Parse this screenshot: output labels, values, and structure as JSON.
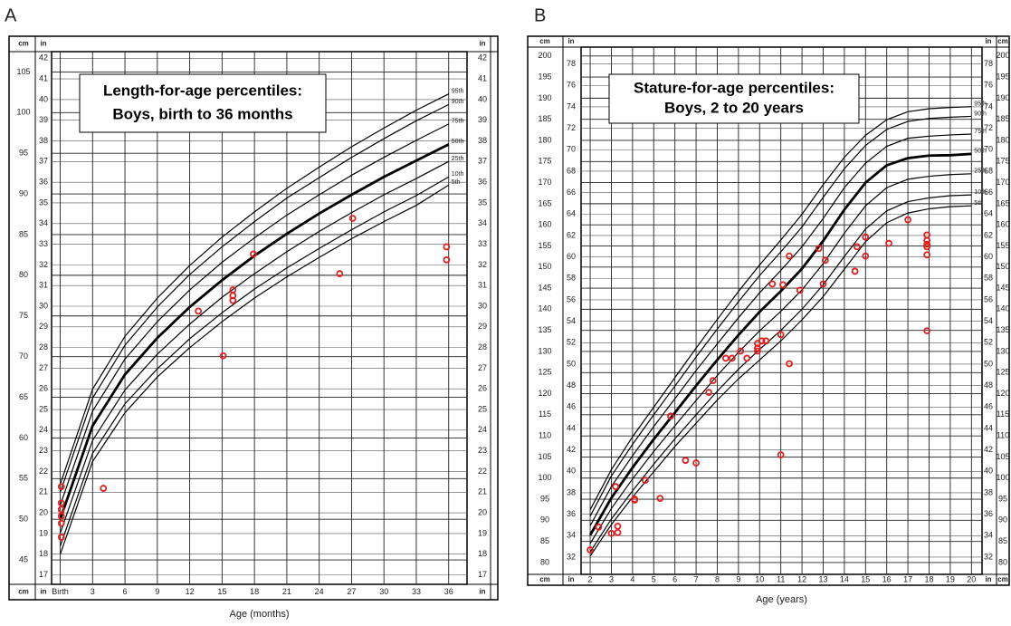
{
  "chart_data": [
    {
      "type": "line",
      "panel_label": "A",
      "title": "Length-for-age percentiles:",
      "subtitle": "Boys, birth to 36 months",
      "xlabel": "Age (months)",
      "ylabel": "cm",
      "y2label": "in",
      "xlim": [
        -0.8,
        37.7
      ],
      "ylim": [
        42,
        107.5
      ],
      "y2lim": [
        16.54,
        42.32
      ],
      "xticks": [
        {
          "value": 0,
          "label": "Birth"
        },
        3,
        6,
        9,
        12,
        15,
        18,
        21,
        24,
        27,
        30,
        33,
        36
      ],
      "yticks": [
        45,
        50,
        55,
        60,
        65,
        70,
        75,
        80,
        85,
        90,
        95,
        100,
        105
      ],
      "y2ticks": [
        17,
        18,
        19,
        20,
        21,
        22,
        23,
        24,
        25,
        26,
        27,
        28,
        29,
        30,
        31,
        32,
        33,
        34,
        35,
        36,
        37,
        38,
        39,
        40,
        41,
        42
      ],
      "grid": true,
      "x": [
        0,
        3,
        6,
        9,
        12,
        15,
        18,
        21,
        24,
        27,
        30,
        33,
        36
      ],
      "series": [
        {
          "name": "95th",
          "color": "#000000",
          "line_width": 1.2,
          "values": [
            54.3,
            66.0,
            72.5,
            77.2,
            81.2,
            84.7,
            87.8,
            90.7,
            93.3,
            95.8,
            98.1,
            100.3,
            102.3
          ]
        },
        {
          "name": "90th",
          "color": "#000000",
          "line_width": 1.2,
          "values": [
            53.3,
            64.9,
            71.4,
            76.1,
            80.1,
            83.5,
            86.6,
            89.5,
            92.0,
            94.5,
            96.8,
            99.0,
            101.0
          ]
        },
        {
          "name": "75th",
          "color": "#000000",
          "line_width": 1.2,
          "values": [
            51.7,
            63.3,
            69.7,
            74.3,
            78.2,
            81.6,
            84.6,
            87.4,
            89.9,
            92.3,
            94.5,
            96.6,
            98.6
          ]
        },
        {
          "name": "50th",
          "color": "#000000",
          "line_width": 2.8,
          "values": [
            50,
            61.5,
            67.8,
            72.3,
            76.1,
            79.4,
            82.4,
            85.1,
            87.6,
            89.9,
            92.1,
            94.1,
            96.1
          ]
        },
        {
          "name": "25th",
          "color": "#000000",
          "line_width": 1.2,
          "values": [
            48.3,
            59.7,
            65.9,
            70.3,
            74.0,
            77.3,
            80.2,
            82.9,
            85.4,
            87.7,
            89.9,
            91.9,
            94.0
          ]
        },
        {
          "name": "10th",
          "color": "#000000",
          "line_width": 1.2,
          "values": [
            46.7,
            58.1,
            64.2,
            68.5,
            72.2,
            75.4,
            78.3,
            80.9,
            83.3,
            85.6,
            87.8,
            89.8,
            92.1
          ]
        },
        {
          "name": "5th",
          "color": "#000000",
          "line_width": 1.2,
          "values": [
            45.7,
            57.1,
            63.1,
            67.5,
            71.1,
            74.3,
            77.2,
            79.8,
            82.2,
            84.5,
            86.6,
            88.6,
            91.1
          ]
        }
      ],
      "points": {
        "color": "#e32020",
        "x": [
          0.1,
          0.1,
          0.1,
          0.1,
          0.1,
          0.1,
          4,
          12.8,
          15.1,
          16,
          16,
          16,
          17.9,
          25.9,
          27.1,
          35.8,
          35.8
        ],
        "y": [
          54.0,
          52.0,
          51.2,
          50.4,
          49.5,
          47.8,
          53.8,
          75.6,
          70.1,
          78.2,
          77.5,
          76.9,
          82.6,
          80.2,
          87.0,
          83.5,
          81.9
        ]
      }
    },
    {
      "type": "line",
      "panel_label": "B",
      "title": "Stature-for-age percentiles:",
      "subtitle": "Boys, 2 to 20 years",
      "xlabel": "Age (years)",
      "ylabel": "cm",
      "y2label": "in",
      "xlim": [
        1.57,
        20.5
      ],
      "ylim": [
        77.2,
        202.1
      ],
      "y2lim": [
        30.39,
        79.57
      ],
      "xticks": [
        2,
        3,
        4,
        5,
        6,
        7,
        8,
        9,
        10,
        11,
        12,
        13,
        14,
        15,
        16,
        17,
        18,
        19,
        20
      ],
      "yticks": [
        80,
        85,
        90,
        95,
        100,
        105,
        110,
        115,
        120,
        125,
        130,
        135,
        140,
        145,
        150,
        155,
        160,
        165,
        170,
        175,
        180,
        185,
        190,
        195,
        200
      ],
      "y2ticks": [
        32,
        34,
        36,
        38,
        40,
        42,
        44,
        46,
        48,
        50,
        52,
        54,
        56,
        58,
        60,
        62,
        64,
        66,
        68,
        70,
        72,
        74,
        76,
        78
      ],
      "grid": true,
      "x": [
        2,
        3,
        4,
        5,
        6,
        7,
        8,
        9,
        10,
        11,
        12,
        13,
        14,
        15,
        16,
        17,
        18,
        19,
        20
      ],
      "series": [
        {
          "name": "95th",
          "color": "#000000",
          "line_width": 1.2,
          "values": [
            92.5,
            102.0,
            109.8,
            116.8,
            123.8,
            130.8,
            137.6,
            144.2,
            150.5,
            156.4,
            162.5,
            169.5,
            176.0,
            181.2,
            184.9,
            186.8,
            187.5,
            187.8,
            188.0
          ]
        },
        {
          "name": "90th",
          "color": "#000000",
          "line_width": 1.2,
          "values": [
            91.0,
            100.5,
            108.0,
            115.0,
            121.8,
            128.7,
            135.3,
            141.8,
            148.0,
            153.6,
            159.5,
            166.5,
            173.3,
            178.8,
            182.6,
            184.5,
            185.2,
            185.5,
            185.7
          ]
        },
        {
          "name": "75th",
          "color": "#000000",
          "line_width": 1.2,
          "values": [
            88.7,
            98.0,
            105.3,
            112.2,
            118.8,
            125.5,
            131.8,
            138.0,
            143.9,
            149.2,
            154.8,
            161.5,
            168.8,
            174.6,
            178.6,
            180.5,
            181.0,
            181.3,
            181.5
          ]
        },
        {
          "name": "50th",
          "color": "#000000",
          "line_width": 2.8,
          "values": [
            86.5,
            95.3,
            102.5,
            109.2,
            115.5,
            121.9,
            128.0,
            133.9,
            139.4,
            144.3,
            149.6,
            156.2,
            163.6,
            170.0,
            174.1,
            175.8,
            176.4,
            176.5,
            176.8
          ]
        },
        {
          "name": "25th",
          "color": "#000000",
          "line_width": 1.2,
          "values": [
            84.5,
            92.8,
            99.8,
            106.3,
            112.4,
            118.4,
            124.3,
            129.8,
            134.9,
            139.5,
            144.6,
            150.8,
            158.0,
            164.5,
            168.8,
            170.8,
            171.5,
            171.9,
            172.1
          ]
        },
        {
          "name": "10th",
          "color": "#000000",
          "line_width": 1.2,
          "values": [
            82.5,
            90.3,
            97.0,
            103.3,
            109.3,
            115.0,
            120.6,
            125.8,
            130.5,
            135.0,
            140.0,
            145.8,
            152.5,
            159.0,
            163.3,
            165.5,
            166.4,
            166.9,
            167.1
          ]
        },
        {
          "name": "5th",
          "color": "#000000",
          "line_width": 1.2,
          "values": [
            81.5,
            89.0,
            95.5,
            101.5,
            107.5,
            113.0,
            118.5,
            123.5,
            128.0,
            132.5,
            137.5,
            143.0,
            149.5,
            156.0,
            160.5,
            162.8,
            163.8,
            164.3,
            164.5
          ]
        }
      ],
      "points": {
        "color": "#e32020",
        "x": [
          2.0,
          2.4,
          3.0,
          3.3,
          3.3,
          3.2,
          4.1,
          4.1,
          4.6,
          5.3,
          5.8,
          6.5,
          7.0,
          7.6,
          7.8,
          8.4,
          8.7,
          9.1,
          9.4,
          9.9,
          9.9,
          9.9,
          10.1,
          10.3,
          10.6,
          11.0,
          11.0,
          11.1,
          11.4,
          11.4,
          11.9,
          12.8,
          13.1,
          13.0,
          14.5,
          14.6,
          15.0,
          15.0,
          16.1,
          17.0,
          17.9,
          17.9,
          17.9,
          17.9,
          17.9,
          17.9
        ],
        "y": [
          83.0,
          88.4,
          86.9,
          87.1,
          88.6,
          98.0,
          95.0,
          94.8,
          99.5,
          95.2,
          114.7,
          104.2,
          103.6,
          120.3,
          123.1,
          128.4,
          128.4,
          130.1,
          128.4,
          130.8,
          130.1,
          131.9,
          132.5,
          132.5,
          146.0,
          105.5,
          134.0,
          145.8,
          127.1,
          152.6,
          144.5,
          154.4,
          151.6,
          146.0,
          149.0,
          154.8,
          157.1,
          152.6,
          155.6,
          161.2,
          157.6,
          156.3,
          155.4,
          154.8,
          152.9,
          134.9
        ]
      }
    }
  ]
}
